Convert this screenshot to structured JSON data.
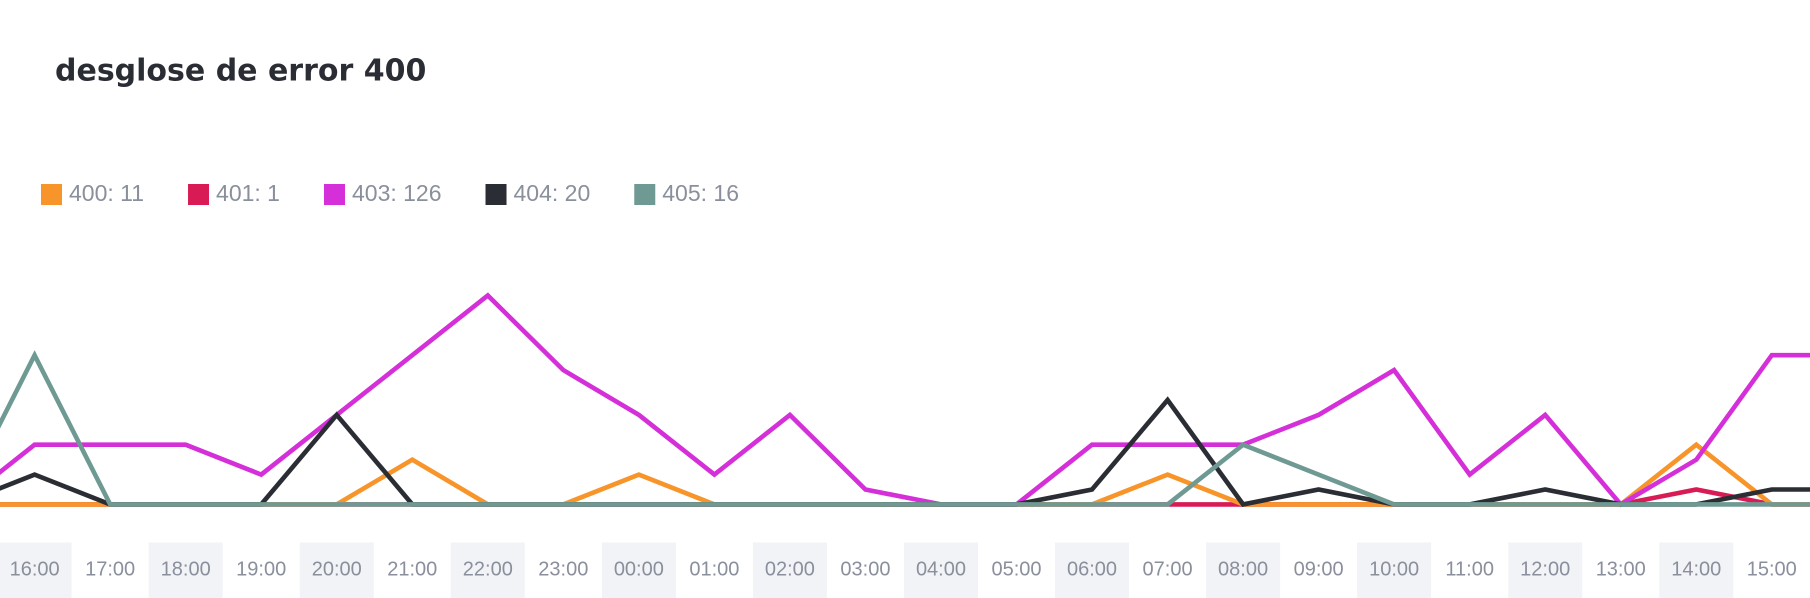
{
  "chart_data": {
    "type": "line",
    "title": "desglose de error 400",
    "categories": [
      null,
      "16:00",
      "17:00",
      "18:00",
      "19:00",
      "20:00",
      "21:00",
      "22:00",
      "23:00",
      "00:00",
      "01:00",
      "02:00",
      "03:00",
      "04:00",
      "05:00",
      "06:00",
      "07:00",
      "08:00",
      "09:00",
      "10:00",
      "11:00",
      "12:00",
      "13:00",
      "14:00",
      "15:00",
      null
    ],
    "ylim": [
      0,
      14
    ],
    "series": [
      {
        "name": "400: 11",
        "color": "#f7952a",
        "values": [
          0,
          0,
          0,
          0,
          0,
          0,
          3,
          0,
          0,
          2,
          0,
          0,
          0,
          0,
          0,
          0,
          2,
          0,
          0,
          0,
          0,
          0,
          0,
          4,
          0,
          0
        ]
      },
      {
        "name": "401: 1",
        "color": "#d81b55",
        "values": [
          0,
          0,
          0,
          0,
          0,
          0,
          0,
          0,
          0,
          0,
          0,
          0,
          0,
          0,
          0,
          0,
          0,
          0,
          0,
          0,
          0,
          0,
          0,
          1,
          0,
          0
        ]
      },
      {
        "name": "403: 126",
        "color": "#d42fd8",
        "values": [
          0,
          4,
          4,
          4,
          2,
          6,
          10,
          14,
          9,
          6,
          2,
          6,
          1,
          0,
          0,
          4,
          4,
          4,
          6,
          9,
          2,
          6,
          0,
          3,
          10,
          10
        ]
      },
      {
        "name": "404: 20",
        "color": "#2b2d35",
        "values": [
          0,
          2,
          0,
          0,
          0,
          6,
          0,
          0,
          0,
          0,
          0,
          0,
          0,
          0,
          0,
          1,
          7,
          0,
          1,
          0,
          0,
          1,
          0,
          0,
          1,
          1
        ]
      },
      {
        "name": "405: 16",
        "color": "#6f9a93",
        "values": [
          0,
          10,
          0,
          0,
          0,
          0,
          0,
          0,
          0,
          0,
          0,
          0,
          0,
          0,
          0,
          0,
          0,
          4,
          2,
          0,
          0,
          0,
          0,
          0,
          0,
          0
        ]
      }
    ]
  }
}
